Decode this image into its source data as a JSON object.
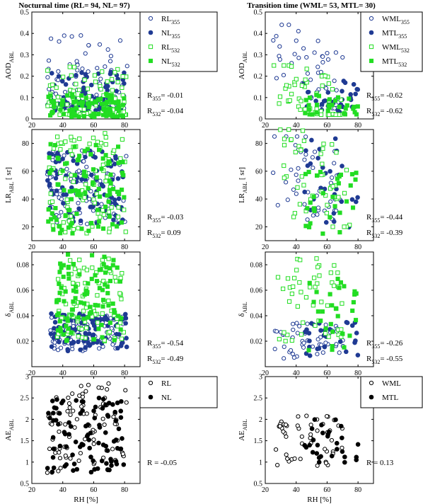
{
  "columns": [
    {
      "title": "Nocturnal time (RL= 94, NL= 97)"
    },
    {
      "title": "Transition time (WML= 53, MTL= 30)"
    }
  ],
  "colors": {
    "blue": "#1f3a93",
    "green": "#22dd22",
    "black": "#000000"
  },
  "chart_data": [
    {
      "id": "aod-nocturnal",
      "type": "scatter",
      "row": 0,
      "col": 0,
      "ylabel": "AOD",
      "ylabel_sub": "ABL",
      "xlim": [
        20,
        90
      ],
      "ylim": [
        0,
        0.5
      ],
      "xticks": [
        "20",
        "40",
        "60",
        "80"
      ],
      "yticks": [
        "0",
        "0.1",
        "0.2",
        "0.3",
        "0.4",
        "0.5"
      ],
      "legend": [
        {
          "name": "RL",
          "sub": "355",
          "color": "blue",
          "marker": "circle-open"
        },
        {
          "name": "NL",
          "sub": "355",
          "color": "blue",
          "marker": "circle-filled"
        },
        {
          "name": "RL",
          "sub": "532",
          "color": "green",
          "marker": "square-open"
        },
        {
          "name": "NL",
          "sub": "532",
          "color": "green",
          "marker": "square-filled"
        }
      ],
      "stats": [
        {
          "label": "R",
          "sub": "355",
          "value": "= -0.01"
        },
        {
          "label": "R",
          "sub": "532",
          "value": "= -0.04"
        }
      ],
      "series": [
        {
          "color": "blue",
          "marker": "circle-open",
          "n": 94,
          "x_range": [
            30,
            82
          ],
          "y_range": [
            0.05,
            0.4
          ],
          "skew": 2.2
        },
        {
          "color": "blue",
          "marker": "circle-filled",
          "n": 97,
          "x_range": [
            32,
            80
          ],
          "y_range": [
            0.04,
            0.22
          ],
          "skew": 1.6
        },
        {
          "color": "green",
          "marker": "square-open",
          "n": 94,
          "x_range": [
            30,
            82
          ],
          "y_range": [
            0.02,
            0.25
          ],
          "skew": 2.0
        },
        {
          "color": "green",
          "marker": "square-filled",
          "n": 97,
          "x_range": [
            30,
            80
          ],
          "y_range": [
            0.01,
            0.12
          ],
          "skew": 1.4
        }
      ]
    },
    {
      "id": "aod-transition",
      "type": "scatter",
      "row": 0,
      "col": 1,
      "ylabel": "AOD",
      "ylabel_sub": "ABL",
      "xlim": [
        20,
        90
      ],
      "ylim": [
        0,
        0.5
      ],
      "xticks": [
        "20",
        "40",
        "60",
        "80"
      ],
      "yticks": [
        "0",
        "0.1",
        "0.2",
        "0.3",
        "0.4",
        "0.5"
      ],
      "legend": [
        {
          "name": "WML",
          "sub": "355",
          "color": "blue",
          "marker": "circle-open"
        },
        {
          "name": "MTL",
          "sub": "355",
          "color": "blue",
          "marker": "circle-filled"
        },
        {
          "name": "WML",
          "sub": "532",
          "color": "green",
          "marker": "square-open"
        },
        {
          "name": "MTL",
          "sub": "532",
          "color": "green",
          "marker": "square-filled"
        }
      ],
      "stats": [
        {
          "label": "R",
          "sub": "355",
          "value": "= -0.62"
        },
        {
          "label": "R",
          "sub": "532",
          "value": "= -0.62"
        }
      ],
      "series": [
        {
          "color": "blue",
          "marker": "circle-open",
          "n": 53,
          "x_range": [
            25,
            70
          ],
          "y_range": [
            0.05,
            0.44
          ],
          "skew": 1.0,
          "trend": -0.6
        },
        {
          "color": "blue",
          "marker": "circle-filled",
          "n": 30,
          "x_range": [
            45,
            80
          ],
          "y_range": [
            0.03,
            0.18
          ],
          "skew": 1.3
        },
        {
          "color": "green",
          "marker": "square-open",
          "n": 53,
          "x_range": [
            25,
            70
          ],
          "y_range": [
            0.02,
            0.25
          ],
          "skew": 1.2,
          "trend": -0.6
        },
        {
          "color": "green",
          "marker": "square-filled",
          "n": 30,
          "x_range": [
            45,
            80
          ],
          "y_range": [
            0.02,
            0.12
          ],
          "skew": 1.2
        }
      ]
    },
    {
      "id": "lr-nocturnal",
      "type": "scatter",
      "row": 1,
      "col": 0,
      "ylabel": "LR",
      "ylabel_sub": "ABL",
      "ylabel_unit": " [ sr]",
      "xlim": [
        20,
        90
      ],
      "ylim": [
        10,
        90
      ],
      "xticks": [
        "20",
        "40",
        "60",
        "80"
      ],
      "yticks": [
        "20",
        "40",
        "60",
        "80"
      ],
      "ytick_values": [
        20,
        40,
        60,
        80
      ],
      "stats": [
        {
          "label": "R",
          "sub": "355",
          "value": "= -0.03"
        },
        {
          "label": "R",
          "sub": "532",
          "value": "= 0.09"
        }
      ],
      "series": [
        {
          "color": "blue",
          "marker": "circle-open",
          "n": 94,
          "x_range": [
            30,
            82
          ],
          "y_range": [
            22,
            75
          ],
          "skew": 1.0
        },
        {
          "color": "blue",
          "marker": "circle-filled",
          "n": 97,
          "x_range": [
            30,
            80
          ],
          "y_range": [
            22,
            75
          ],
          "skew": 1.0
        },
        {
          "color": "green",
          "marker": "square-open",
          "n": 94,
          "x_range": [
            30,
            82
          ],
          "y_range": [
            14,
            88
          ],
          "skew": 1.0
        },
        {
          "color": "green",
          "marker": "square-filled",
          "n": 97,
          "x_range": [
            30,
            80
          ],
          "y_range": [
            15,
            80
          ],
          "skew": 1.0
        }
      ]
    },
    {
      "id": "lr-transition",
      "type": "scatter",
      "row": 1,
      "col": 1,
      "ylabel": "LR",
      "ylabel_sub": "ABL",
      "ylabel_unit": " [ sr]",
      "xlim": [
        20,
        90
      ],
      "ylim": [
        10,
        90
      ],
      "xticks": [
        "20",
        "40",
        "60",
        "80"
      ],
      "yticks": [
        "20",
        "40",
        "60",
        "80"
      ],
      "ytick_values": [
        20,
        40,
        60,
        80
      ],
      "stats": [
        {
          "label": "R",
          "sub": "355",
          "value": "= -0.44"
        },
        {
          "label": "R",
          "sub": "532",
          "value": "= -0.39"
        }
      ],
      "series": [
        {
          "color": "blue",
          "marker": "circle-open",
          "n": 53,
          "x_range": [
            25,
            70
          ],
          "y_range": [
            25,
            85
          ],
          "skew": 1.0,
          "trend": -0.5
        },
        {
          "color": "blue",
          "marker": "circle-filled",
          "n": 30,
          "x_range": [
            45,
            80
          ],
          "y_range": [
            18,
            85
          ],
          "skew": 1.4
        },
        {
          "color": "green",
          "marker": "square-open",
          "n": 53,
          "x_range": [
            25,
            75
          ],
          "y_range": [
            20,
            90
          ],
          "skew": 1.0,
          "trend": -0.5
        },
        {
          "color": "green",
          "marker": "square-filled",
          "n": 30,
          "x_range": [
            45,
            80
          ],
          "y_range": [
            15,
            60
          ],
          "skew": 1.0
        }
      ]
    },
    {
      "id": "delta-nocturnal",
      "type": "scatter",
      "row": 2,
      "col": 0,
      "ylabel": "δ",
      "ylabel_sub": "ABL",
      "xlim": [
        20,
        90
      ],
      "ylim": [
        0,
        0.09
      ],
      "xticks": [
        "20",
        "40",
        "60",
        "80"
      ],
      "yticks": [
        "0.02",
        "0.04",
        "0.06",
        "0.08"
      ],
      "ytick_values": [
        0.02,
        0.04,
        0.06,
        0.08
      ],
      "stats": [
        {
          "label": "R",
          "sub": "355",
          "value": "= -0.54"
        },
        {
          "label": "R",
          "sub": "532",
          "value": "= -0.49"
        }
      ],
      "series": [
        {
          "color": "blue",
          "marker": "circle-open",
          "n": 94,
          "x_range": [
            32,
            80
          ],
          "y_range": [
            0.012,
            0.04
          ],
          "skew": 1.0
        },
        {
          "color": "blue",
          "marker": "circle-filled",
          "n": 97,
          "x_range": [
            32,
            82
          ],
          "y_range": [
            0.012,
            0.042
          ],
          "skew": 1.0
        },
        {
          "color": "green",
          "marker": "square-open",
          "n": 94,
          "x_range": [
            36,
            80
          ],
          "y_range": [
            0.02,
            0.085
          ],
          "skew": 1.0
        },
        {
          "color": "green",
          "marker": "square-filled",
          "n": 97,
          "x_range": [
            36,
            78
          ],
          "y_range": [
            0.02,
            0.088
          ],
          "skew": 1.0
        }
      ]
    },
    {
      "id": "delta-transition",
      "type": "scatter",
      "row": 2,
      "col": 1,
      "ylabel": "δ",
      "ylabel_sub": "ABL",
      "xlim": [
        20,
        90
      ],
      "ylim": [
        0,
        0.09
      ],
      "xticks": [
        "20",
        "40",
        "60",
        "80"
      ],
      "yticks": [
        "0.02",
        "0.04",
        "0.06",
        "0.08"
      ],
      "ytick_values": [
        0.02,
        0.04,
        0.06,
        0.08
      ],
      "stats": [
        {
          "label": "R",
          "sub": "355",
          "value": "= -0.26"
        },
        {
          "label": "R",
          "sub": "532",
          "value": "= -0.55"
        }
      ],
      "series": [
        {
          "color": "blue",
          "marker": "circle-open",
          "n": 53,
          "x_range": [
            26,
            72
          ],
          "y_range": [
            0.006,
            0.035
          ],
          "skew": 1.0
        },
        {
          "color": "blue",
          "marker": "circle-filled",
          "n": 30,
          "x_range": [
            45,
            80
          ],
          "y_range": [
            0.008,
            0.035
          ],
          "skew": 1.0
        },
        {
          "color": "green",
          "marker": "square-open",
          "n": 53,
          "x_range": [
            28,
            70
          ],
          "y_range": [
            0.02,
            0.086
          ],
          "skew": 1.0
        },
        {
          "color": "green",
          "marker": "square-filled",
          "n": 30,
          "x_range": [
            45,
            80
          ],
          "y_range": [
            0.012,
            0.072
          ],
          "skew": 1.0
        }
      ]
    },
    {
      "id": "ae-nocturnal",
      "type": "scatter",
      "row": 3,
      "col": 0,
      "ylabel": "AE",
      "ylabel_sub": "ABL",
      "xlabel": "RH [%]",
      "xlim": [
        20,
        90
      ],
      "ylim": [
        0.5,
        3
      ],
      "xticks": [
        "20",
        "40",
        "60",
        "80"
      ],
      "yticks": [
        "0.5",
        "1",
        "1.5",
        "2",
        "2.5",
        "3"
      ],
      "legend": [
        {
          "name": "RL",
          "sub": "",
          "color": "black",
          "marker": "circle-open"
        },
        {
          "name": "NL",
          "sub": "",
          "color": "black",
          "marker": "circle-filled"
        }
      ],
      "stats": [
        {
          "label": "R",
          "sub": "",
          "value": "= -0.05"
        }
      ],
      "series": [
        {
          "color": "black",
          "marker": "circle-open",
          "n": 94,
          "x_range": [
            30,
            82
          ],
          "y_range": [
            0.75,
            2.85
          ],
          "skew": 1.0
        },
        {
          "color": "black",
          "marker": "circle-filled",
          "n": 97,
          "x_range": [
            30,
            80
          ],
          "y_range": [
            0.75,
            2.5
          ],
          "skew": 1.0
        }
      ]
    },
    {
      "id": "ae-transition",
      "type": "scatter",
      "row": 3,
      "col": 1,
      "ylabel": "AE",
      "ylabel_sub": "ABL",
      "xlabel": "RH [%]",
      "xlim": [
        20,
        90
      ],
      "ylim": [
        0.5,
        3
      ],
      "xticks": [
        "20",
        "40",
        "60",
        "80"
      ],
      "yticks": [
        "0.5",
        "1",
        "1.5",
        "2",
        "2.5",
        "3"
      ],
      "legend": [
        {
          "name": "WML",
          "sub": "",
          "color": "black",
          "marker": "circle-open"
        },
        {
          "name": "MTL",
          "sub": "",
          "color": "black",
          "marker": "circle-filled"
        }
      ],
      "stats": [
        {
          "label": "R",
          "sub": "",
          "value": "= 0.13"
        }
      ],
      "series": [
        {
          "color": "black",
          "marker": "circle-open",
          "n": 53,
          "x_range": [
            26,
            72
          ],
          "y_range": [
            0.8,
            2.1
          ],
          "skew": 1.0
        },
        {
          "color": "black",
          "marker": "circle-filled",
          "n": 30,
          "x_range": [
            45,
            80
          ],
          "y_range": [
            0.95,
            2.05
          ],
          "skew": 1.0
        }
      ]
    }
  ]
}
